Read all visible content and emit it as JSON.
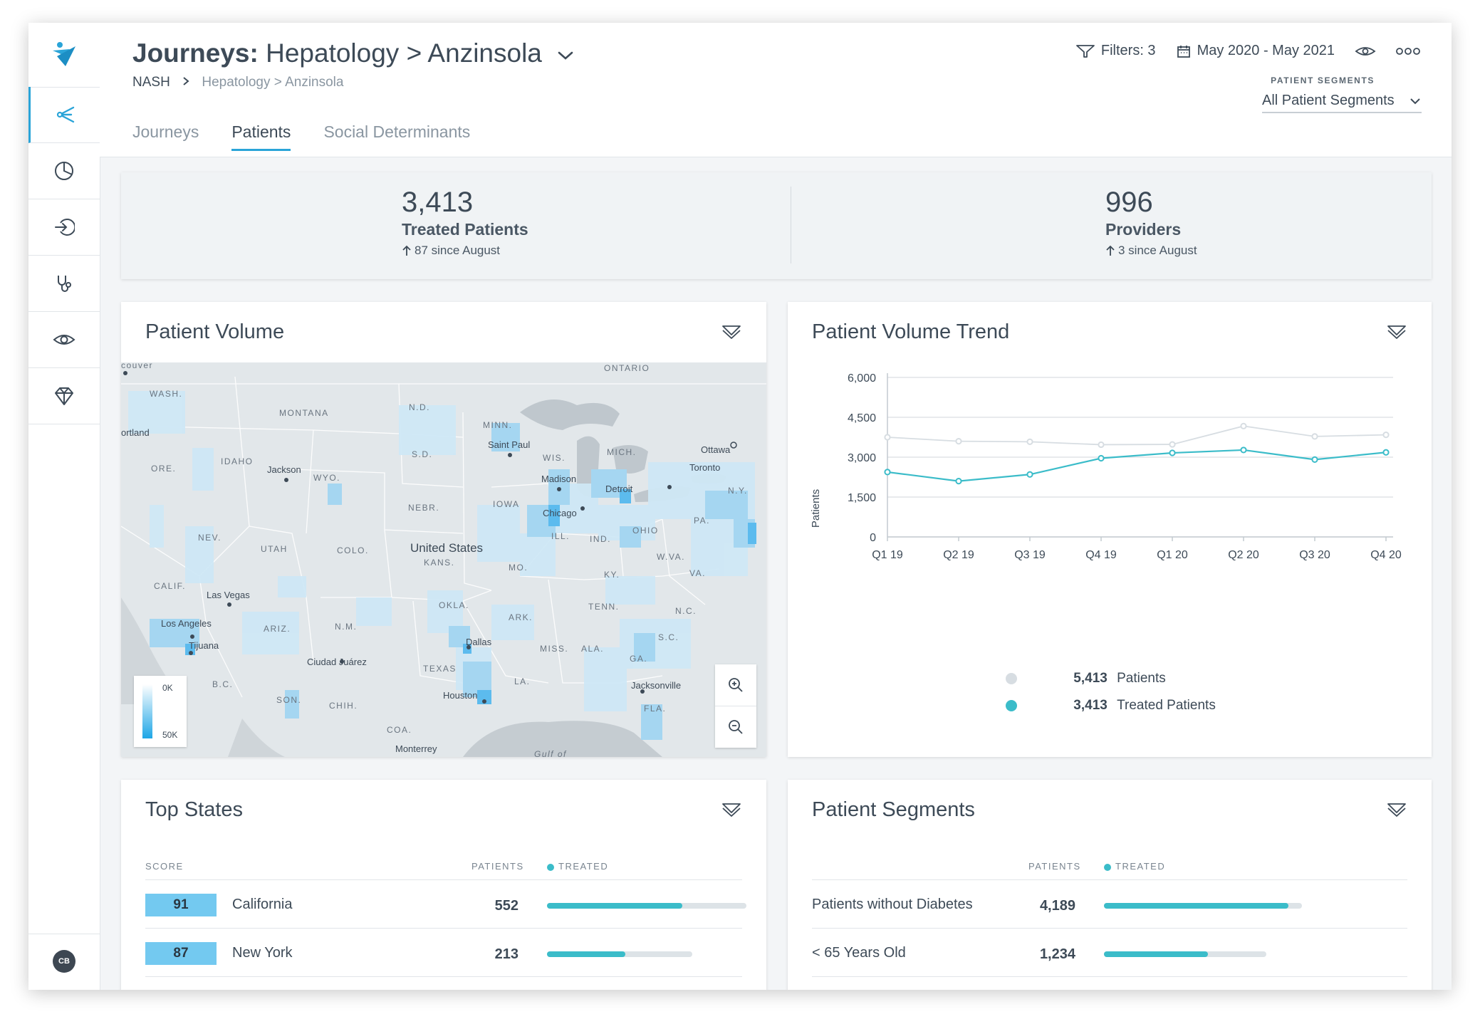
{
  "app": {
    "avatar_initials": "CB",
    "accent": "#2aa4d8"
  },
  "sidebar": {
    "items": [
      {
        "name": "journeys",
        "icon": "journey-branch-icon",
        "active": true
      },
      {
        "name": "analytics",
        "icon": "pie-chart-icon"
      },
      {
        "name": "entry",
        "icon": "sign-in-icon"
      },
      {
        "name": "clinical",
        "icon": "stethoscope-icon"
      },
      {
        "name": "watch",
        "icon": "eye-icon"
      },
      {
        "name": "premium",
        "icon": "diamond-icon"
      }
    ]
  },
  "header": {
    "title_prefix": "Journeys:",
    "title_path": "Hepatology > Anzinsola",
    "breadcrumb_root": "NASH",
    "breadcrumb_sub": "Hepatology > Anzinsola",
    "tabs": [
      {
        "label": "Journeys",
        "active": false
      },
      {
        "label": "Patients",
        "active": true
      },
      {
        "label": "Social Determinants",
        "active": false
      }
    ],
    "filters_label": "Filters: 3",
    "date_range": "May 2020 - May 2021",
    "segments_label": "PATIENT SEGMENTS",
    "segments_value": "All Patient Segments"
  },
  "stats": [
    {
      "value": "3,413",
      "label": "Treated Patients",
      "change": "87 since August"
    },
    {
      "value": "996",
      "label": "Providers",
      "change": "3 since August"
    }
  ],
  "patient_volume": {
    "title": "Patient Volume",
    "legend_top": "0K",
    "legend_bottom": "50K",
    "map_labels": [
      {
        "text": "couver",
        "kind": "city"
      },
      {
        "text": "WASH.",
        "kind": "state"
      },
      {
        "text": "MONTANA",
        "kind": "state"
      },
      {
        "text": "ONTARIO",
        "kind": "state"
      },
      {
        "text": "N.D.",
        "kind": "state"
      },
      {
        "text": "MINN.",
        "kind": "state"
      },
      {
        "text": "ortland",
        "kind": "city"
      },
      {
        "text": "Saint Paul",
        "kind": "city"
      },
      {
        "text": "Ottawa",
        "kind": "city"
      },
      {
        "text": "ORE.",
        "kind": "state"
      },
      {
        "text": "IDAHO",
        "kind": "state"
      },
      {
        "text": "Jackson",
        "kind": "city"
      },
      {
        "text": "WYO.",
        "kind": "state"
      },
      {
        "text": "S.D.",
        "kind": "state"
      },
      {
        "text": "WIS.",
        "kind": "state"
      },
      {
        "text": "MICH.",
        "kind": "state"
      },
      {
        "text": "Toronto",
        "kind": "city"
      },
      {
        "text": "Madison",
        "kind": "city"
      },
      {
        "text": "Detroit",
        "kind": "city"
      },
      {
        "text": "N.Y.",
        "kind": "state"
      },
      {
        "text": "IOWA",
        "kind": "state"
      },
      {
        "text": "NEBR.",
        "kind": "state"
      },
      {
        "text": "Chicago",
        "kind": "city"
      },
      {
        "text": "NEV.",
        "kind": "state"
      },
      {
        "text": "UTAH",
        "kind": "state"
      },
      {
        "text": "COLO.",
        "kind": "state"
      },
      {
        "text": "United States",
        "kind": "country"
      },
      {
        "text": "KANS.",
        "kind": "state"
      },
      {
        "text": "ILL.",
        "kind": "state"
      },
      {
        "text": "IND.",
        "kind": "state"
      },
      {
        "text": "OHIO",
        "kind": "state"
      },
      {
        "text": "PA.",
        "kind": "state"
      },
      {
        "text": "MO.",
        "kind": "state"
      },
      {
        "text": "W.VA.",
        "kind": "state"
      },
      {
        "text": "KY.",
        "kind": "state"
      },
      {
        "text": "VA.",
        "kind": "state"
      },
      {
        "text": "CALIF.",
        "kind": "state"
      },
      {
        "text": "Las Vegas",
        "kind": "city"
      },
      {
        "text": "OKLA.",
        "kind": "state"
      },
      {
        "text": "TENN.",
        "kind": "state"
      },
      {
        "text": "N.C.",
        "kind": "state"
      },
      {
        "text": "Los Angeles",
        "kind": "city"
      },
      {
        "text": "ARIZ.",
        "kind": "state"
      },
      {
        "text": "N.M.",
        "kind": "state"
      },
      {
        "text": "ARK.",
        "kind": "state"
      },
      {
        "text": "S.C.",
        "kind": "state"
      },
      {
        "text": "Tijuana",
        "kind": "city"
      },
      {
        "text": "Dallas",
        "kind": "city"
      },
      {
        "text": "MISS.",
        "kind": "state"
      },
      {
        "text": "ALA.",
        "kind": "state"
      },
      {
        "text": "GA.",
        "kind": "state"
      },
      {
        "text": "Ciudad Juárez",
        "kind": "city"
      },
      {
        "text": "TEXAS",
        "kind": "state"
      },
      {
        "text": "LA.",
        "kind": "state"
      },
      {
        "text": "Jacksonville",
        "kind": "city"
      },
      {
        "text": "B.C.",
        "kind": "state"
      },
      {
        "text": "Houston",
        "kind": "city"
      },
      {
        "text": "SON.",
        "kind": "state"
      },
      {
        "text": "CHIH.",
        "kind": "state"
      },
      {
        "text": "FLA.",
        "kind": "state"
      },
      {
        "text": "COA.",
        "kind": "state"
      },
      {
        "text": "Monterrey",
        "kind": "city"
      },
      {
        "text": "Gulf of",
        "kind": "water"
      }
    ]
  },
  "trend": {
    "title": "Patient Volume Trend",
    "legend": [
      {
        "value": "5,413",
        "label": "Patients",
        "color": "#d7dde2"
      },
      {
        "value": "3,413",
        "label": "Treated Patients",
        "color": "#3bbcc9"
      }
    ]
  },
  "chart_data": {
    "type": "line",
    "title": "",
    "xlabel": "",
    "ylabel": "Patients",
    "ylim": [
      0,
      6000
    ],
    "yticks": [
      0,
      1500,
      3000,
      4500,
      6000
    ],
    "ytick_labels": [
      "0",
      "1,500",
      "3,000",
      "4,500",
      "6,000"
    ],
    "grid": true,
    "categories": [
      "Q1 19",
      "Q2 19",
      "Q3 19",
      "Q4 19",
      "Q1 20",
      "Q2 20",
      "Q3 20",
      "Q4 20"
    ],
    "series": [
      {
        "values": [
          3750,
          3600,
          3580,
          3470,
          3480,
          4170,
          3780,
          3840
        ],
        "color": "#d7dde2"
      },
      {
        "values": [
          2440,
          2100,
          2350,
          2960,
          3160,
          3270,
          2910,
          3180
        ],
        "color": "#3bbcc9"
      }
    ]
  },
  "top_states": {
    "title": "Top States",
    "col_score": "SCORE",
    "col_patients": "PATIENTS",
    "col_treated": "TREATED",
    "rows": [
      {
        "score": "91",
        "state": "California",
        "patients": "552",
        "treated_pct": 68,
        "patients_pct": 100
      },
      {
        "score": "87",
        "state": "New York",
        "patients": "213",
        "treated_pct": 54,
        "patients_pct": 73
      }
    ]
  },
  "patient_segments": {
    "title": "Patient Segments",
    "col_patients": "PATIENTS",
    "col_treated": "TREATED",
    "rows": [
      {
        "label": "Patients without Diabetes",
        "patients": "4,189",
        "treated_pct": 93,
        "patients_pct": 100
      },
      {
        "label": "< 65 Years Old",
        "patients": "1,234",
        "treated_pct": 64,
        "patients_pct": 82
      }
    ]
  }
}
